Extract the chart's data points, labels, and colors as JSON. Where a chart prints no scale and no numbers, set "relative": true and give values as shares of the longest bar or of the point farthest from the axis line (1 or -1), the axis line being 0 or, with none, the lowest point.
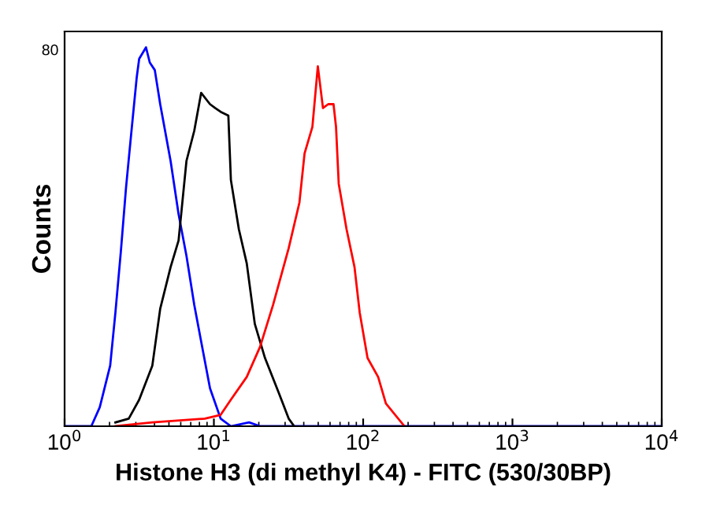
{
  "chart_data": {
    "type": "line",
    "xlabel": "Histone H3 (di methyl K4) - FITC (530/30BP)",
    "ylabel": "Counts",
    "log": "x",
    "relative": true,
    "annotations": [
      "80"
    ],
    "xlim": [
      1,
      10000
    ],
    "xticks": [
      {
        "value": 1,
        "label": "10$^{0}$"
      },
      {
        "value": 10,
        "label": "10$^{1}$"
      },
      {
        "value": 100,
        "label": "10$^{2}$"
      },
      {
        "value": 1000,
        "label": "10$^{3}$"
      },
      {
        "value": 10000,
        "label": "10$^{4}$"
      }
    ],
    "grid": false,
    "legend": false,
    "marker": "none",
    "line_style": "solid",
    "series": [
      {
        "color": "#0000ff",
        "x": [
          1,
          1.51,
          1.72,
          2.02,
          2.19,
          2.38,
          2.58,
          2.79,
          3.04,
          3.16,
          3.51,
          3.72,
          4.02,
          4.37,
          5.13,
          5.8,
          6.55,
          7.39,
          8.34,
          9.42,
          11.1,
          13.0,
          17.2,
          20.4,
          10000
        ],
        "values": [
          0,
          0,
          0.05,
          0.16,
          0.3,
          0.46,
          0.63,
          0.77,
          0.92,
          0.97,
          1,
          0.96,
          0.94,
          0.85,
          0.7,
          0.56,
          0.45,
          0.32,
          0.21,
          0.1,
          0.02,
          0,
          0.01,
          0,
          0
        ]
      },
      {
        "color": "#000000",
        "x": [
          2.19,
          2.69,
          3.16,
          3.87,
          4.37,
          5.13,
          5.8,
          6.55,
          7.39,
          8.22,
          9.42,
          10.2,
          11.1,
          12.5,
          13.0,
          14.7,
          16.6,
          18.8,
          22.0,
          27.1,
          31.7,
          34.5
        ],
        "values": [
          0.01,
          0.02,
          0.07,
          0.16,
          0.31,
          0.42,
          0.49,
          0.7,
          0.78,
          0.88,
          0.85,
          0.84,
          0.83,
          0.82,
          0.65,
          0.52,
          0.43,
          0.27,
          0.18,
          0.09,
          0.02,
          0
        ]
      },
      {
        "color": "#ff0000",
        "x": [
          2.19,
          3.87,
          8.7,
          11.1,
          13.0,
          16.6,
          20.4,
          24.9,
          31.7,
          37.4,
          40.5,
          45.7,
          49.7,
          53.8,
          58.3,
          63.3,
          65.8,
          68.6,
          77.4,
          87.5,
          94.8,
          107,
          126,
          142,
          189
        ],
        "values": [
          0,
          0.01,
          0.02,
          0.03,
          0.07,
          0.13,
          0.21,
          0.32,
          0.47,
          0.59,
          0.72,
          0.79,
          0.95,
          0.84,
          0.85,
          0.85,
          0.79,
          0.64,
          0.52,
          0.42,
          0.3,
          0.18,
          0.13,
          0.06,
          0
        ]
      }
    ]
  }
}
